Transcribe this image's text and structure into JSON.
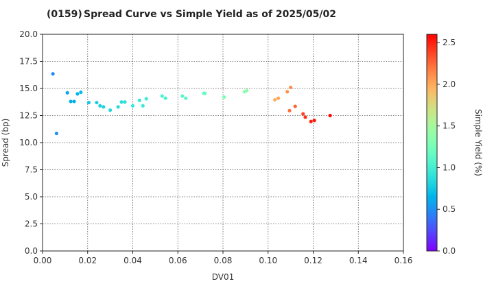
{
  "chart_data": {
    "type": "scatter",
    "title_code": "(0159)",
    "title": "Spread Curve vs Simple Yield as of 2025/05/02",
    "xlabel": "DV01",
    "ylabel": "Spread (bp)",
    "colorbar_label": "Simple Yield (%)",
    "xlim": [
      0.0,
      0.16
    ],
    "ylim": [
      0.0,
      20.0
    ],
    "clim": [
      0.0,
      2.6
    ],
    "grid": true,
    "colormap": "rainbow",
    "x_ticks": [
      0.0,
      0.02,
      0.04,
      0.06,
      0.08,
      0.1,
      0.12,
      0.14,
      0.16
    ],
    "x_tick_labels": [
      "0.00",
      "0.02",
      "0.04",
      "0.06",
      "0.08",
      "0.10",
      "0.12",
      "0.14",
      "0.16"
    ],
    "y_ticks": [
      0.0,
      2.5,
      5.0,
      7.5,
      10.0,
      12.5,
      15.0,
      17.5,
      20.0
    ],
    "y_tick_labels": [
      "0.0",
      "2.5",
      "5.0",
      "7.5",
      "10.0",
      "12.5",
      "15.0",
      "17.5",
      "20.0"
    ],
    "c_ticks": [
      0.0,
      0.5,
      1.0,
      1.5,
      2.0,
      2.5
    ],
    "c_tick_labels": [
      "0.0",
      "0.5",
      "1.0",
      "1.5",
      "2.0",
      "2.5"
    ],
    "points": [
      {
        "x": 0.0046,
        "y": 16.35,
        "yield": 0.46
      },
      {
        "x": 0.0062,
        "y": 10.85,
        "yield": 0.5
      },
      {
        "x": 0.011,
        "y": 14.6,
        "yield": 0.58
      },
      {
        "x": 0.0125,
        "y": 13.8,
        "yield": 0.62
      },
      {
        "x": 0.014,
        "y": 13.8,
        "yield": 0.64
      },
      {
        "x": 0.0155,
        "y": 14.5,
        "yield": 0.66
      },
      {
        "x": 0.017,
        "y": 14.65,
        "yield": 0.68
      },
      {
        "x": 0.0205,
        "y": 13.7,
        "yield": 0.74
      },
      {
        "x": 0.024,
        "y": 13.7,
        "yield": 0.78
      },
      {
        "x": 0.0255,
        "y": 13.4,
        "yield": 0.8
      },
      {
        "x": 0.027,
        "y": 13.3,
        "yield": 0.82
      },
      {
        "x": 0.03,
        "y": 13.0,
        "yield": 0.84
      },
      {
        "x": 0.0335,
        "y": 13.3,
        "yield": 0.86
      },
      {
        "x": 0.035,
        "y": 13.75,
        "yield": 0.88
      },
      {
        "x": 0.0365,
        "y": 13.75,
        "yield": 0.89
      },
      {
        "x": 0.04,
        "y": 13.4,
        "yield": 0.92
      },
      {
        "x": 0.043,
        "y": 13.9,
        "yield": 0.94
      },
      {
        "x": 0.0445,
        "y": 13.4,
        "yield": 0.95
      },
      {
        "x": 0.046,
        "y": 14.05,
        "yield": 0.97
      },
      {
        "x": 0.053,
        "y": 14.3,
        "yield": 1.02
      },
      {
        "x": 0.0545,
        "y": 14.1,
        "yield": 1.03
      },
      {
        "x": 0.062,
        "y": 14.3,
        "yield": 1.08
      },
      {
        "x": 0.0635,
        "y": 14.1,
        "yield": 1.1
      },
      {
        "x": 0.0715,
        "y": 14.55,
        "yield": 1.16
      },
      {
        "x": 0.072,
        "y": 14.55,
        "yield": 1.17
      },
      {
        "x": 0.0805,
        "y": 14.2,
        "yield": 1.27
      },
      {
        "x": 0.0895,
        "y": 14.7,
        "yield": 1.36
      },
      {
        "x": 0.0905,
        "y": 14.8,
        "yield": 1.38
      },
      {
        "x": 0.103,
        "y": 13.95,
        "yield": 1.98
      },
      {
        "x": 0.1045,
        "y": 14.1,
        "yield": 2.02
      },
      {
        "x": 0.1085,
        "y": 14.7,
        "yield": 2.1
      },
      {
        "x": 0.11,
        "y": 15.1,
        "yield": 2.12
      },
      {
        "x": 0.1095,
        "y": 12.95,
        "yield": 2.22
      },
      {
        "x": 0.112,
        "y": 13.35,
        "yield": 2.28
      },
      {
        "x": 0.1155,
        "y": 12.65,
        "yield": 2.38
      },
      {
        "x": 0.1165,
        "y": 12.35,
        "yield": 2.44
      },
      {
        "x": 0.119,
        "y": 11.95,
        "yield": 2.5
      },
      {
        "x": 0.1205,
        "y": 12.05,
        "yield": 2.52
      },
      {
        "x": 0.1275,
        "y": 12.5,
        "yield": 2.58
      }
    ]
  }
}
